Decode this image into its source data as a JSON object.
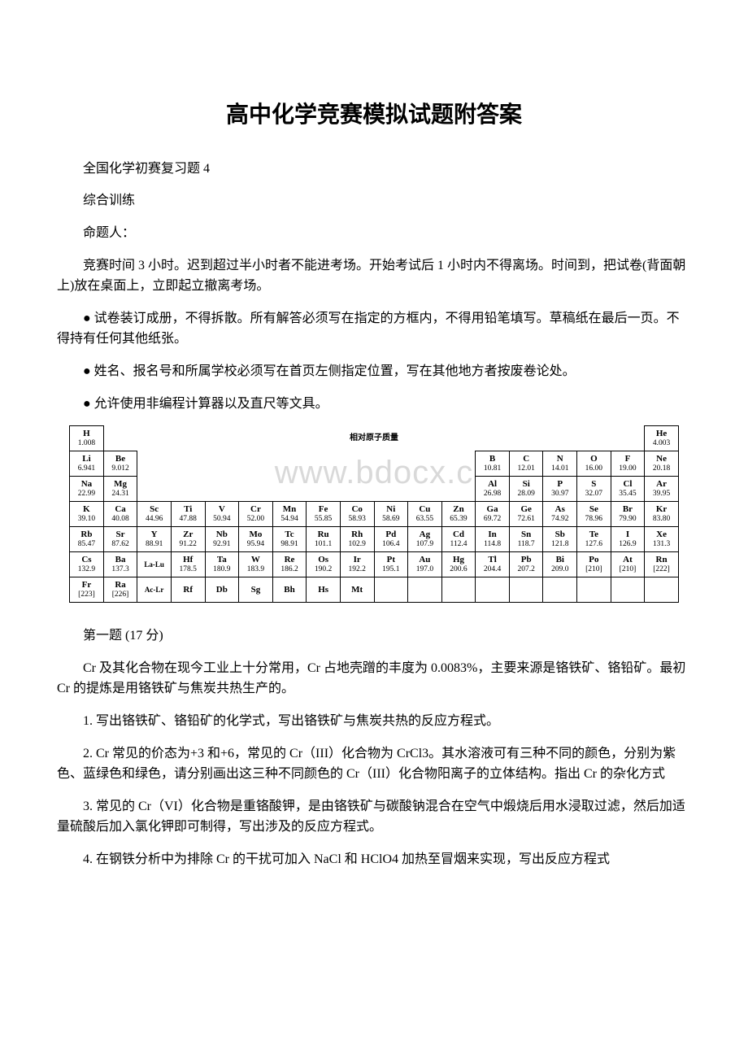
{
  "title": "高中化学竞赛模拟试题附答案",
  "intro1": "全国化学初赛复习题 4",
  "intro2": "综合训练",
  "intro3": "命题人：",
  "rules1": "竞赛时间 3 小时。迟到超过半小时者不能进考场。开始考试后 1 小时内不得离场。时间到，把试卷(背面朝上)放在桌面上，立即起立撤离考场。",
  "rules2": "● 试卷装订成册，不得拆散。所有解答必须写在指定的方框内，不得用铅笔填写。草稿纸在最后一页。不得持有任何其他纸张。",
  "rules3": "● 姓名、报名号和所属学校必须写在首页左侧指定位置，写在其他地方者按废卷论处。",
  "rules4": "● 允许使用非编程计算器以及直尺等文具。",
  "watermark": "www.bdocx.c",
  "pt_title": "相对原子质量",
  "elements": {
    "H": {
      "s": "H",
      "w": "1.008"
    },
    "He": {
      "s": "He",
      "w": "4.003"
    },
    "Li": {
      "s": "Li",
      "w": "6.941"
    },
    "Be": {
      "s": "Be",
      "w": "9.012"
    },
    "B": {
      "s": "B",
      "w": "10.81"
    },
    "C": {
      "s": "C",
      "w": "12.01"
    },
    "N": {
      "s": "N",
      "w": "14.01"
    },
    "O": {
      "s": "O",
      "w": "16.00"
    },
    "F": {
      "s": "F",
      "w": "19.00"
    },
    "Ne": {
      "s": "Ne",
      "w": "20.18"
    },
    "Na": {
      "s": "Na",
      "w": "22.99"
    },
    "Mg": {
      "s": "Mg",
      "w": "24.31"
    },
    "Al": {
      "s": "Al",
      "w": "26.98"
    },
    "Si": {
      "s": "Si",
      "w": "28.09"
    },
    "P": {
      "s": "P",
      "w": "30.97"
    },
    "S": {
      "s": "S",
      "w": "32.07"
    },
    "Cl": {
      "s": "Cl",
      "w": "35.45"
    },
    "Ar": {
      "s": "Ar",
      "w": "39.95"
    },
    "K": {
      "s": "K",
      "w": "39.10"
    },
    "Ca": {
      "s": "Ca",
      "w": "40.08"
    },
    "Sc": {
      "s": "Sc",
      "w": "44.96"
    },
    "Ti": {
      "s": "Ti",
      "w": "47.88"
    },
    "V": {
      "s": "V",
      "w": "50.94"
    },
    "Cr": {
      "s": "Cr",
      "w": "52.00"
    },
    "Mn": {
      "s": "Mn",
      "w": "54.94"
    },
    "Fe": {
      "s": "Fe",
      "w": "55.85"
    },
    "Co": {
      "s": "Co",
      "w": "58.93"
    },
    "Ni": {
      "s": "Ni",
      "w": "58.69"
    },
    "Cu": {
      "s": "Cu",
      "w": "63.55"
    },
    "Zn": {
      "s": "Zn",
      "w": "65.39"
    },
    "Ga": {
      "s": "Ga",
      "w": "69.72"
    },
    "Ge": {
      "s": "Ge",
      "w": "72.61"
    },
    "As": {
      "s": "As",
      "w": "74.92"
    },
    "Se": {
      "s": "Se",
      "w": "78.96"
    },
    "Br": {
      "s": "Br",
      "w": "79.90"
    },
    "Kr": {
      "s": "Kr",
      "w": "83.80"
    },
    "Rb": {
      "s": "Rb",
      "w": "85.47"
    },
    "Sr": {
      "s": "Sr",
      "w": "87.62"
    },
    "Y": {
      "s": "Y",
      "w": "88.91"
    },
    "Zr": {
      "s": "Zr",
      "w": "91.22"
    },
    "Nb": {
      "s": "Nb",
      "w": "92.91"
    },
    "Mo": {
      "s": "Mo",
      "w": "95.94"
    },
    "Tc": {
      "s": "Tc",
      "w": "98.91"
    },
    "Ru": {
      "s": "Ru",
      "w": "101.1"
    },
    "Rh": {
      "s": "Rh",
      "w": "102.9"
    },
    "Pd": {
      "s": "Pd",
      "w": "106.4"
    },
    "Ag": {
      "s": "Ag",
      "w": "107.9"
    },
    "Cd": {
      "s": "Cd",
      "w": "112.4"
    },
    "In": {
      "s": "In",
      "w": "114.8"
    },
    "Sn": {
      "s": "Sn",
      "w": "118.7"
    },
    "Sb": {
      "s": "Sb",
      "w": "121.8"
    },
    "Te": {
      "s": "Te",
      "w": "127.6"
    },
    "I": {
      "s": "I",
      "w": "126.9"
    },
    "Xe": {
      "s": "Xe",
      "w": "131.3"
    },
    "Cs": {
      "s": "Cs",
      "w": "132.9"
    },
    "Ba": {
      "s": "Ba",
      "w": "137.3"
    },
    "LaLu": {
      "s": "La-Lu",
      "w": ""
    },
    "Hf": {
      "s": "Hf",
      "w": "178.5"
    },
    "Ta": {
      "s": "Ta",
      "w": "180.9"
    },
    "W": {
      "s": "W",
      "w": "183.9"
    },
    "Re": {
      "s": "Re",
      "w": "186.2"
    },
    "Os": {
      "s": "Os",
      "w": "190.2"
    },
    "Ir": {
      "s": "Ir",
      "w": "192.2"
    },
    "Pt": {
      "s": "Pt",
      "w": "195.1"
    },
    "Au": {
      "s": "Au",
      "w": "197.0"
    },
    "Hg": {
      "s": "Hg",
      "w": "200.6"
    },
    "Tl": {
      "s": "Tl",
      "w": "204.4"
    },
    "Pb": {
      "s": "Pb",
      "w": "207.2"
    },
    "Bi": {
      "s": "Bi",
      "w": "209.0"
    },
    "Po": {
      "s": "Po",
      "w": "[210]"
    },
    "At": {
      "s": "At",
      "w": "[210]"
    },
    "Rn": {
      "s": "Rn",
      "w": "[222]"
    },
    "Fr": {
      "s": "Fr",
      "w": "[223]"
    },
    "Ra": {
      "s": "Ra",
      "w": "[226]"
    },
    "AcLr": {
      "s": "Ac-Lr",
      "w": ""
    },
    "Rf": {
      "s": "Rf",
      "w": ""
    },
    "Db": {
      "s": "Db",
      "w": ""
    },
    "Sg": {
      "s": "Sg",
      "w": ""
    },
    "Bh": {
      "s": "Bh",
      "w": ""
    },
    "Hs": {
      "s": "Hs",
      "w": ""
    },
    "Mt": {
      "s": "Mt",
      "w": ""
    }
  },
  "q1_title": "第一题 (17 分)",
  "q1_intro": "Cr 及其化合物在现今工业上十分常用，Cr 占地壳蹭的丰度为 0.0083%，主要来源是铬铁矿、铬铅矿。最初 Cr 的提炼是用铬铁矿与焦炭共热生产的。",
  "q1_1": "1. 写出铬铁矿、铬铅矿的化学式，写出铬铁矿与焦炭共热的反应方程式。",
  "q1_2": "2. Cr 常见的价态为+3 和+6，常见的 Cr（III）化合物为 CrCl3。其水溶液可有三种不同的颜色，分别为紫色、蓝绿色和绿色，请分别画出这三种不同颜色的 Cr（III）化合物阳离子的立体结构。指出 Cr 的杂化方式",
  "q1_3": "3. 常见的 Cr（VI）化合物是重铬酸钾，是由铬铁矿与碳酸钠混合在空气中煅烧后用水浸取过滤，然后加适量硫酸后加入氯化钾即可制得，写出涉及的反应方程式。",
  "q1_4": "4. 在钢铁分析中为排除 Cr 的干扰可加入 NaCl 和 HClO4 加热至冒烟来实现，写出反应方程式"
}
